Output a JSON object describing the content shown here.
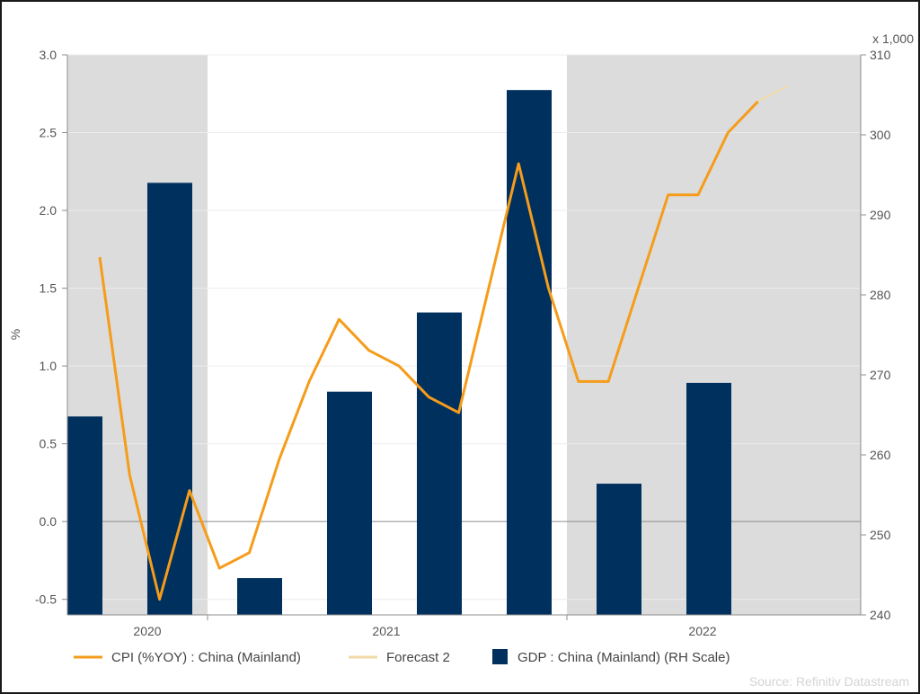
{
  "chart_data": {
    "type": "bar+line",
    "left_axis": {
      "label": "%",
      "ylim": [
        -0.6,
        3.0
      ],
      "ticks": [
        "3.0",
        "2.5",
        "2.0",
        "1.5",
        "1.0",
        "0.5",
        "0.0",
        "-0.5"
      ]
    },
    "right_axis": {
      "unit_label": "x 1,000",
      "ylim": [
        240,
        310
      ],
      "ticks": [
        "310",
        "300",
        "290",
        "280",
        "270",
        "260",
        "250",
        "240"
      ]
    },
    "x_axis": {
      "year_labels": [
        "2020",
        "2021",
        "2022"
      ]
    },
    "shaded_year_bands": [
      "2020",
      "2022"
    ],
    "cpi": {
      "name": "CPI (%YOY) : China (Mainland)",
      "color": "#f59c1a",
      "x": [
        "2020-01",
        "2020-02",
        "2020-03",
        "2020-04",
        "2020-05",
        "2020-06",
        "2020-07",
        "2020-08",
        "2020-09",
        "2020-10",
        "2020-11",
        "2020-12",
        "2021-01",
        "2021-02",
        "2021-03",
        "2021-04",
        "2021-05",
        "2021-06",
        "2021-07",
        "2021-08"
      ],
      "values": [
        1.7,
        0.3,
        -0.5,
        0.2,
        -0.3,
        -0.2,
        0.4,
        0.9,
        1.3,
        1.1,
        1.0,
        0.8,
        0.7,
        1.5,
        2.3,
        1.5,
        0.9,
        0.9,
        1.5,
        2.1
      ]
    },
    "cpi_continued": {
      "x": [
        "2021-09",
        "2021-10",
        "2021-11"
      ],
      "values": [
        2.1,
        2.5,
        2.7
      ]
    },
    "forecast": {
      "name": "Forecast 2",
      "color": "#f3d9a8",
      "x": [
        "2021-11",
        "2021-12"
      ],
      "values": [
        2.7,
        2.8
      ]
    },
    "gdp": {
      "name": "GDP : China (Mainland) (RH Scale)",
      "color": "#00305e",
      "x": [
        "2020-Q1",
        "2020-Q2",
        "2020-Q3",
        "2020-Q4",
        "2021-Q1",
        "2021-Q2",
        "2021-Q3",
        "2021-Q4",
        "2022-Q1"
      ],
      "values": [
        264.8,
        294.0,
        244.6,
        267.9,
        277.8,
        305.6,
        256.4,
        269.0,
        0
      ]
    },
    "legend": {
      "items": [
        "CPI (%YOY) : China (Mainland)",
        "Forecast 2",
        "GDP : China (Mainland) (RH Scale)"
      ],
      "placement": "bottom"
    },
    "source": "Source: Refinitiv Datastream",
    "grid": true
  }
}
